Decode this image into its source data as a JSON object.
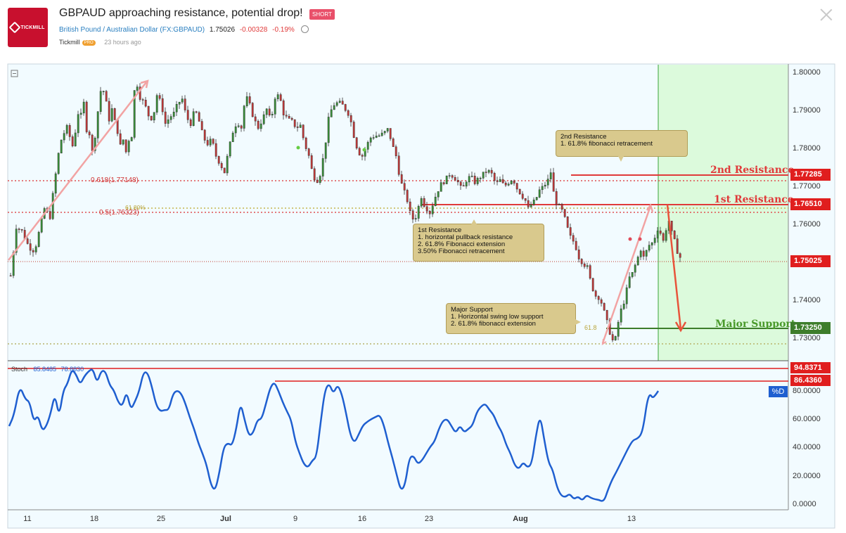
{
  "header": {
    "logo_text": "TICKMILL",
    "title": "GBPAUD approaching resistance, potential drop!",
    "badge": "SHORT",
    "instrument": "British Pound / Australian Dollar",
    "symbol": "(FX:GBPAUD)",
    "price": "1.75026",
    "change": "-0.00328",
    "change_pct": "-0.19%",
    "author": "Tickmill",
    "author_badge": "PRO",
    "time_ago": "23 hours ago"
  },
  "annotations": {
    "res2": "2nd Resistance\n1. 61.8% fibonacci retracement",
    "res1": "1st Resistance\n1. horizontal pullback resistance\n2. 61.8% Fibonacci extension\n3.50% Fibonacci retracement",
    "support": "Major Support\n1. Horizontal swing low support\n2. 61.8% fibonacci extension"
  },
  "levels": {
    "res2_label": "2nd Resistance",
    "res1_label": "1st Resistance",
    "support_label": "Major Support",
    "fib618": "0.618(1.77148)",
    "fib50": "0.5(1.76323)",
    "ext618_top": "61.80%",
    "ext618_bottom": "61.8"
  },
  "price_tags": {
    "res2": "1.77285",
    "res1": "1.76510",
    "current": "1.75025",
    "support": "1.73250"
  },
  "stoch": {
    "label": "Stoch",
    "k": "85.8485",
    "d": "78.8830",
    "tag_high": "94.8371",
    "tag_low": "86.4360",
    "pd_label": "%D",
    "ticks": [
      "80.0000",
      "60.0000",
      "40.0000",
      "20.0000",
      "0.0000"
    ]
  },
  "chart_data": {
    "type": "candlestick",
    "title": "GBPAUD approaching resistance, potential drop!",
    "ylim": [
      1.7285,
      1.8015
    ],
    "price_ticks": [
      "1.80000",
      "1.79000",
      "1.78000",
      "1.77000",
      "1.76000",
      "1.74000",
      "1.73000"
    ],
    "x_ticks": [
      "11",
      "18",
      "25",
      "Jul",
      "9",
      "16",
      "23",
      "Aug",
      "13"
    ],
    "close_path": [
      [
        0,
        1.7495
      ],
      [
        8,
        1.7615
      ],
      [
        16,
        1.7605
      ],
      [
        26,
        1.7565
      ],
      [
        34,
        1.7555
      ],
      [
        40,
        1.76
      ],
      [
        48,
        1.766
      ],
      [
        56,
        1.764
      ],
      [
        62,
        1.772
      ],
      [
        66,
        1.777
      ],
      [
        70,
        1.782
      ],
      [
        74,
        1.784
      ],
      [
        80,
        1.786
      ],
      [
        88,
        1.7815
      ],
      [
        92,
        1.785
      ],
      [
        96,
        1.7895
      ],
      [
        100,
        1.789
      ],
      [
        104,
        1.792
      ],
      [
        108,
        1.7855
      ],
      [
        112,
        1.7845
      ],
      [
        116,
        1.78
      ],
      [
        120,
        1.784
      ],
      [
        124,
        1.79
      ],
      [
        128,
        1.795
      ],
      [
        132,
        1.795
      ],
      [
        136,
        1.792
      ],
      [
        140,
        1.788
      ],
      [
        144,
        1.7905
      ],
      [
        148,
        1.7875
      ],
      [
        152,
        1.785
      ],
      [
        156,
        1.7815
      ],
      [
        160,
        1.783
      ],
      [
        164,
        1.78
      ],
      [
        168,
        1.783
      ],
      [
        172,
        1.784
      ],
      [
        176,
        1.795
      ],
      [
        180,
        1.7965
      ],
      [
        184,
        1.7935
      ],
      [
        190,
        1.792
      ],
      [
        196,
        1.789
      ],
      [
        202,
        1.788
      ],
      [
        208,
        1.794
      ],
      [
        214,
        1.792
      ],
      [
        220,
        1.787
      ],
      [
        226,
        1.7885
      ],
      [
        232,
        1.7895
      ],
      [
        238,
        1.792
      ],
      [
        244,
        1.793
      ],
      [
        250,
        1.7885
      ],
      [
        256,
        1.787
      ],
      [
        262,
        1.7905
      ],
      [
        268,
        1.7875
      ],
      [
        274,
        1.7835
      ],
      [
        280,
        1.782
      ],
      [
        286,
        1.783
      ],
      [
        292,
        1.779
      ],
      [
        298,
        1.777
      ],
      [
        304,
        1.775
      ],
      [
        310,
        1.7805
      ],
      [
        316,
        1.785
      ],
      [
        322,
        1.7875
      ],
      [
        328,
        1.786
      ],
      [
        334,
        1.794
      ],
      [
        340,
        1.7915
      ],
      [
        346,
        1.788
      ],
      [
        352,
        1.786
      ],
      [
        358,
        1.788
      ],
      [
        364,
        1.7905
      ],
      [
        370,
        1.7875
      ],
      [
        376,
        1.7935
      ],
      [
        382,
        1.794
      ],
      [
        388,
        1.7895
      ],
      [
        394,
        1.788
      ],
      [
        400,
        1.7875
      ],
      [
        406,
        1.786
      ],
      [
        412,
        1.7865
      ],
      [
        418,
        1.782
      ],
      [
        424,
        1.779
      ],
      [
        430,
        1.774
      ],
      [
        436,
        1.773
      ],
      [
        440,
        1.7745
      ],
      [
        446,
        1.78
      ],
      [
        452,
        1.788
      ],
      [
        458,
        1.7915
      ],
      [
        464,
        1.792
      ],
      [
        470,
        1.792
      ],
      [
        476,
        1.7905
      ],
      [
        482,
        1.789
      ],
      [
        488,
        1.784
      ],
      [
        494,
        1.78
      ],
      [
        500,
        1.779
      ],
      [
        506,
        1.7815
      ],
      [
        512,
        1.7835
      ],
      [
        518,
        1.784
      ],
      [
        524,
        1.784
      ],
      [
        530,
        1.7845
      ],
      [
        536,
        1.7855
      ],
      [
        540,
        1.7835
      ],
      [
        544,
        1.781
      ],
      [
        548,
        1.779
      ],
      [
        552,
        1.775
      ],
      [
        556,
        1.772
      ],
      [
        560,
        1.77
      ],
      [
        564,
        1.768
      ],
      [
        568,
        1.765
      ],
      [
        572,
        1.7635
      ],
      [
        576,
        1.764
      ],
      [
        580,
        1.7665
      ],
      [
        584,
        1.769
      ],
      [
        588,
        1.767
      ],
      [
        592,
        1.766
      ],
      [
        596,
        1.765
      ],
      [
        600,
        1.767
      ],
      [
        606,
        1.77
      ],
      [
        612,
        1.772
      ],
      [
        618,
        1.773
      ],
      [
        624,
        1.7745
      ],
      [
        630,
        1.774
      ],
      [
        636,
        1.7725
      ],
      [
        642,
        1.7705
      ],
      [
        648,
        1.773
      ],
      [
        654,
        1.774
      ],
      [
        660,
        1.7725
      ],
      [
        666,
        1.7735
      ],
      [
        672,
        1.7745
      ],
      [
        678,
        1.7755
      ],
      [
        684,
        1.7745
      ],
      [
        690,
        1.772
      ],
      [
        696,
        1.773
      ],
      [
        702,
        1.7715
      ],
      [
        708,
        1.7725
      ],
      [
        714,
        1.7735
      ],
      [
        720,
        1.771
      ],
      [
        726,
        1.7695
      ],
      [
        732,
        1.768
      ],
      [
        736,
        1.766
      ],
      [
        740,
        1.767
      ],
      [
        746,
        1.768
      ],
      [
        752,
        1.7705
      ],
      [
        758,
        1.7715
      ],
      [
        764,
        1.773
      ],
      [
        768,
        1.775
      ],
      [
        772,
        1.77
      ],
      [
        776,
        1.7675
      ],
      [
        780,
        1.7665
      ],
      [
        786,
        1.765
      ],
      [
        790,
        1.762
      ],
      [
        796,
        1.759
      ],
      [
        802,
        1.7575
      ],
      [
        808,
        1.754
      ],
      [
        814,
        1.7525
      ],
      [
        820,
        1.7515
      ],
      [
        826,
        1.747
      ],
      [
        832,
        1.7445
      ],
      [
        838,
        1.744
      ],
      [
        844,
        1.7405
      ],
      [
        848,
        1.738
      ],
      [
        852,
        1.7355
      ],
      [
        856,
        1.7335
      ],
      [
        860,
        1.734
      ],
      [
        864,
        1.738
      ],
      [
        868,
        1.741
      ],
      [
        872,
        1.743
      ],
      [
        876,
        1.746
      ],
      [
        880,
        1.749
      ],
      [
        884,
        1.75
      ],
      [
        888,
        1.752
      ],
      [
        892,
        1.754
      ],
      [
        896,
        1.756
      ],
      [
        900,
        1.754
      ],
      [
        904,
        1.7555
      ],
      [
        908,
        1.757
      ],
      [
        912,
        1.7575
      ],
      [
        916,
        1.759
      ],
      [
        920,
        1.761
      ],
      [
        924,
        1.76
      ],
      [
        928,
        1.758
      ],
      [
        932,
        1.761
      ],
      [
        936,
        1.763
      ],
      [
        940,
        1.76
      ],
      [
        944,
        1.758
      ],
      [
        948,
        1.7555
      ],
      [
        952,
        1.754
      ]
    ],
    "horizontal_levels": [
      {
        "name": "2nd Resistance",
        "value": 1.77285
      },
      {
        "name": "0.618 fib",
        "value": 1.77148
      },
      {
        "name": "1st Resistance",
        "value": 1.7651
      },
      {
        "name": "0.5 fib",
        "value": 1.76323
      },
      {
        "name": "current",
        "value": 1.75025
      },
      {
        "name": "Major Support",
        "value": 1.7325
      }
    ],
    "stoch": {
      "ylim": [
        0,
        100
      ],
      "upper": 94.8371,
      "lower": 86.436
    }
  }
}
